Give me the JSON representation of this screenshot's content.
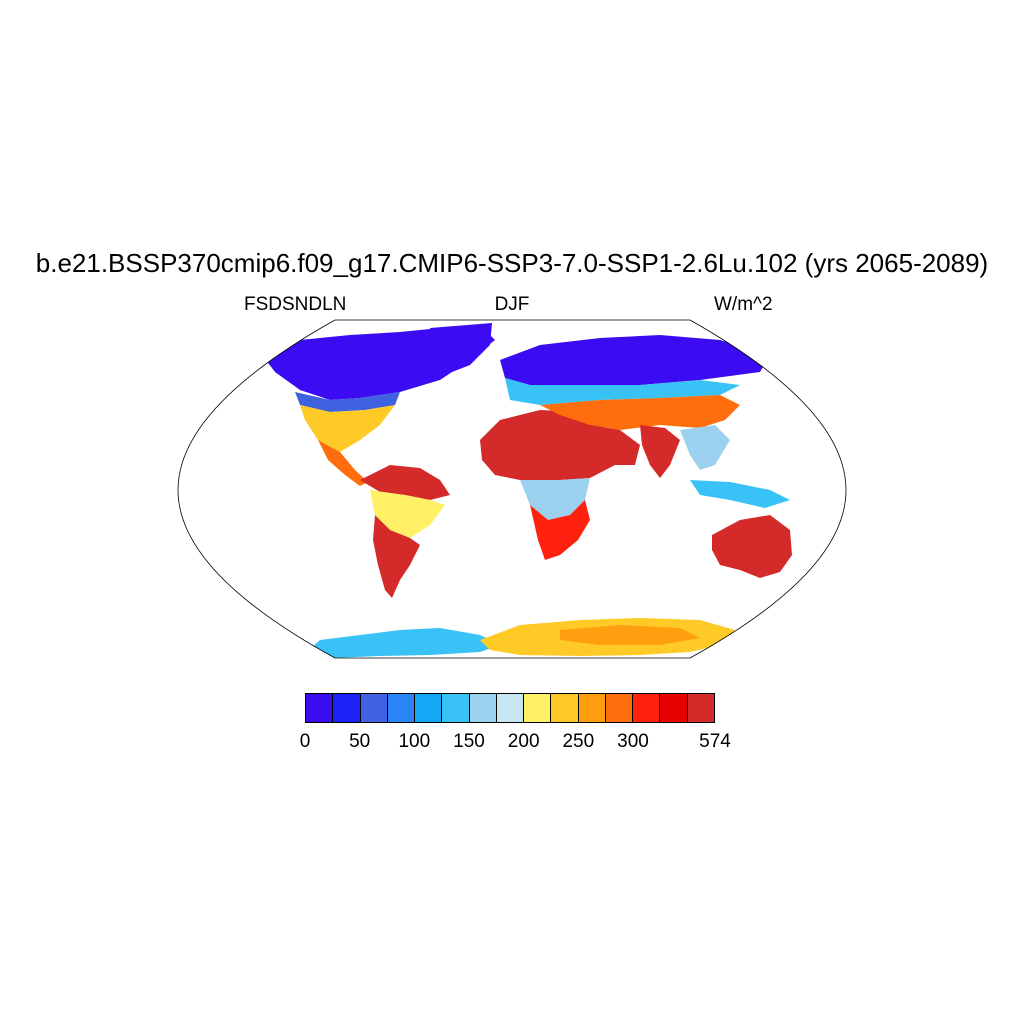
{
  "title": "b.e21.BSSP370cmip6.f09_g17.CMIP6-SSP3-7.0-SSP1-2.6Lu.102 (yrs 2065-2089)",
  "subtitle_left": "FSDSNDLN",
  "subtitle_center": "DJF",
  "subtitle_right": "W/m^2",
  "colorbar": {
    "colors": [
      "#3b0cf2",
      "#1a22f5",
      "#3f62e0",
      "#2a84f6",
      "#12a8f6",
      "#39c2f5",
      "#9bd0ee",
      "#c6e6f4",
      "#fff066",
      "#ffc926",
      "#ff9f0f",
      "#ff6d0d",
      "#ff200d",
      "#e60000",
      "#d42a2a"
    ],
    "tick_labels": [
      "0",
      "50",
      "100",
      "150",
      "200",
      "250",
      "300",
      "574"
    ],
    "tick_index": [
      0,
      2,
      4,
      6,
      8,
      10,
      12,
      15
    ]
  }
}
